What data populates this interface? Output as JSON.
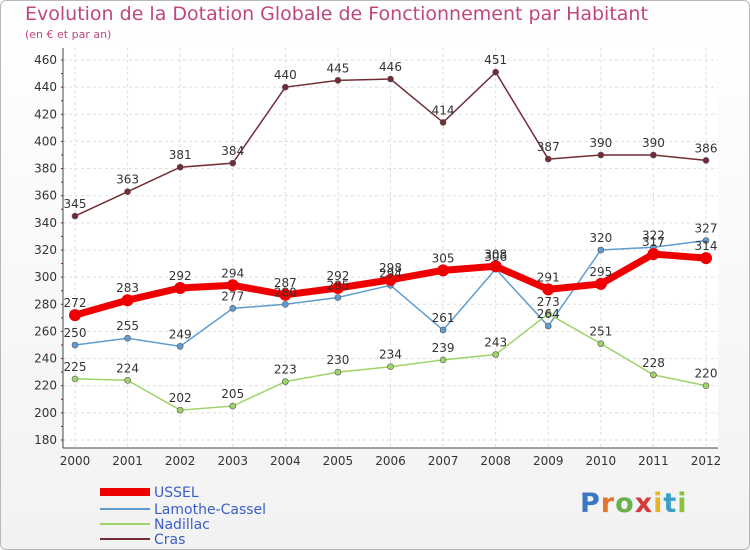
{
  "title": "Evolution de la Dotation Globale de Fonctionnement par Habitant",
  "subtitle": "(en € et par an)",
  "logo": {
    "text": "Proxiti",
    "colors": [
      "#3a78c3",
      "#e3762b",
      "#6ab04c",
      "#d63a3a",
      "#e8b22a",
      "#3aa0c9",
      "#8ac13a"
    ]
  },
  "chart_data": {
    "type": "line",
    "x": [
      "2000",
      "2001",
      "2002",
      "2003",
      "2004",
      "2005",
      "2006",
      "2007",
      "2008",
      "2009",
      "2010",
      "2011",
      "2012"
    ],
    "ylim": [
      180,
      460
    ],
    "yticks": [
      180,
      200,
      220,
      240,
      260,
      280,
      300,
      320,
      340,
      360,
      380,
      400,
      420,
      440,
      460
    ],
    "grid": true,
    "legend": "bottom-left",
    "series": [
      {
        "name": "USSEL",
        "color": "#ee0000",
        "values": [
          272,
          283,
          292,
          294,
          287,
          292,
          298,
          305,
          308,
          291,
          295,
          317,
          314
        ],
        "thick": true
      },
      {
        "name": "Lamothe-Cassel",
        "color": "#5f9cd1",
        "values": [
          250,
          255,
          249,
          277,
          280,
          285,
          294,
          261,
          306,
          264,
          320,
          322,
          327
        ]
      },
      {
        "name": "Nadillac",
        "color": "#9ed36a",
        "values": [
          225,
          224,
          202,
          205,
          223,
          230,
          234,
          239,
          243,
          273,
          251,
          228,
          220
        ]
      },
      {
        "name": "Cras",
        "color": "#732c35",
        "values": [
          345,
          363,
          381,
          384,
          440,
          445,
          446,
          414,
          451,
          387,
          390,
          390,
          386
        ]
      }
    ]
  }
}
